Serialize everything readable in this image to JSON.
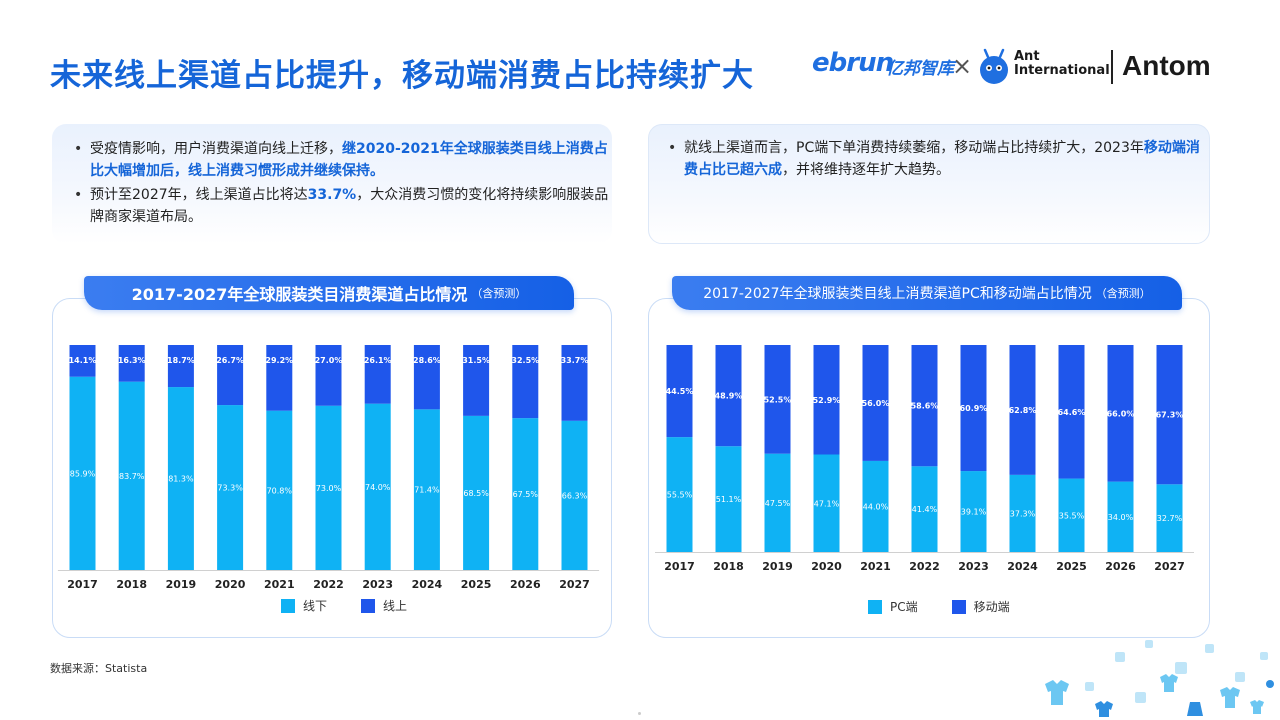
{
  "page": {
    "title": "未来线上渠道占比提升，移动端消费占比持续扩大",
    "source": "数据来源：Statista"
  },
  "logos": {
    "ebrun": "ebrun",
    "ebrun_cn": "亿邦智库",
    "times": "×",
    "ant_line1": "Ant",
    "ant_line2": "International",
    "antom": "Antom"
  },
  "left_text": {
    "b1_plain": "受疫情影响，用户消费渠道向线上迁移，",
    "b1_bold": "继2020-2021年全球服装类目线上消费占比大幅增加后，线上消费习惯形成并继续保持。",
    "b2_plain1": "预计至2027年，线上渠道占比将达",
    "b2_bold": "33.7%",
    "b2_plain2": "，大众消费习惯的变化将持续影响服装品牌商家渠道布局。"
  },
  "right_text": {
    "b1_plain1": "就线上渠道而言，PC端下单消费持续萎缩，移动端占比持续扩大，2023年",
    "b1_bold": "移动端消费占比已超六成",
    "b1_plain2": "，并将维持逐年扩大趋势。"
  },
  "colors": {
    "light": "#0fb2f4",
    "dark": "#1f56eb",
    "title": "#1565d8"
  },
  "chart_data": [
    {
      "type": "bar",
      "stacked": true,
      "title": "2017-2027年全球服装类目消费渠道占比情况",
      "subtitle": "（含预测）",
      "categories": [
        "2017",
        "2018",
        "2019",
        "2020",
        "2021",
        "2022",
        "2023",
        "2024",
        "2025",
        "2026",
        "2027"
      ],
      "series": [
        {
          "name": "线下",
          "color": "#0fb2f4",
          "values": [
            85.9,
            83.7,
            81.3,
            73.3,
            70.8,
            73.0,
            74.0,
            71.4,
            68.5,
            67.5,
            66.3
          ]
        },
        {
          "name": "线上",
          "color": "#1f56eb",
          "values": [
            14.1,
            16.3,
            18.7,
            26.7,
            29.2,
            27.0,
            26.1,
            28.6,
            31.5,
            32.5,
            33.7
          ]
        }
      ],
      "value_format": "%",
      "ylim": [
        0,
        100
      ]
    },
    {
      "type": "bar",
      "stacked": true,
      "title": "2017-2027年全球服装类目线上消费渠道PC和移动端占比情况",
      "subtitle": "（含预测）",
      "categories": [
        "2017",
        "2018",
        "2019",
        "2020",
        "2021",
        "2022",
        "2023",
        "2024",
        "2025",
        "2026",
        "2027"
      ],
      "series": [
        {
          "name": "PC端",
          "color": "#0fb2f4",
          "values": [
            55.5,
            51.1,
            47.5,
            47.1,
            44.0,
            41.4,
            39.1,
            37.3,
            35.5,
            34.0,
            32.7
          ]
        },
        {
          "name": "移动端",
          "color": "#1f56eb",
          "values": [
            44.5,
            48.9,
            52.5,
            52.9,
            56.0,
            58.6,
            60.9,
            62.8,
            64.6,
            66.0,
            67.3
          ]
        }
      ],
      "value_format": "%",
      "ylim": [
        0,
        100
      ]
    }
  ]
}
